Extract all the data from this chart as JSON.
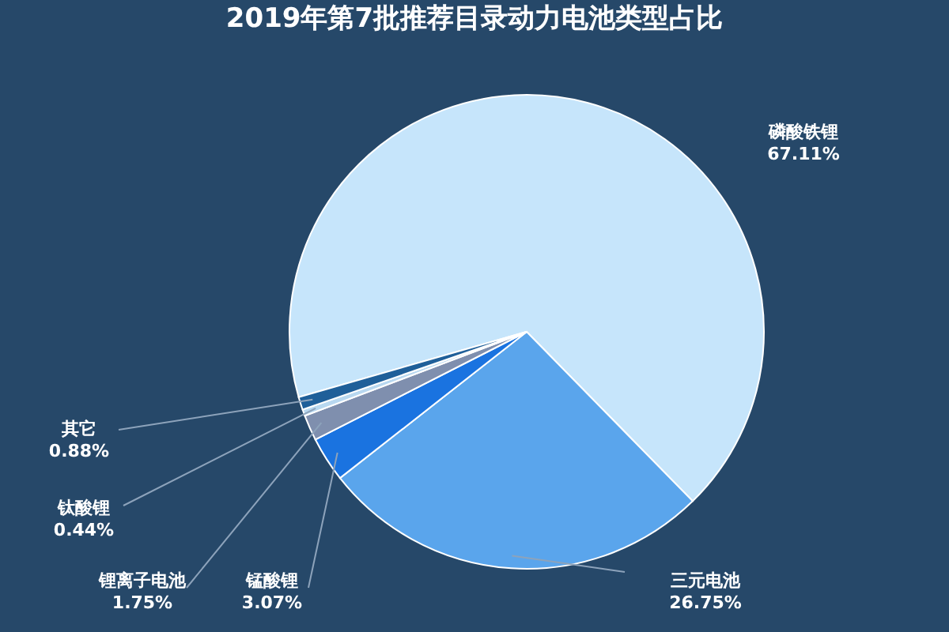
{
  "chart_data": {
    "type": "pie",
    "title": "2019年第7批推荐目录动力电池类型占比",
    "categories": [
      "磷酸铁锂",
      "三元电池",
      "锰酸锂",
      "锂离子电池",
      "钛酸锂",
      "其它"
    ],
    "values": [
      67.11,
      26.75,
      3.07,
      1.75,
      0.44,
      0.88
    ],
    "value_labels": [
      "67.11%",
      "26.75%",
      "3.07%",
      "1.75%",
      "0.44%",
      "0.88%"
    ],
    "colors": [
      "#c6e5fb",
      "#5aa5ec",
      "#1a73e0",
      "#7f8fae",
      "#b8d8f0",
      "#1f5f99"
    ]
  }
}
